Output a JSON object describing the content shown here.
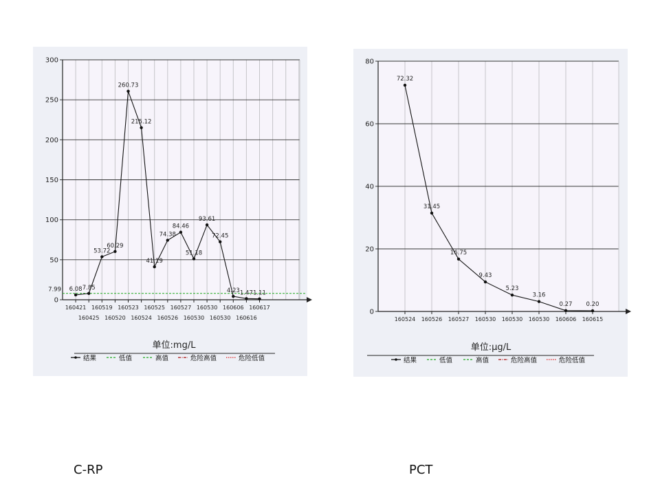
{
  "charts_meta": {
    "captions": [
      "C-RP",
      "PCT"
    ]
  },
  "legend_items": [
    {
      "label": "结果",
      "color": "#000000",
      "dash": "solid"
    },
    {
      "label": "低值",
      "color": "#22aa22",
      "dash": "dashed"
    },
    {
      "label": "高值",
      "color": "#22aa22",
      "dash": "dashed"
    },
    {
      "label": "危险高值",
      "color": "#aa1111",
      "dash": "dashdot"
    },
    {
      "label": "危险低值",
      "color": "#dd2222",
      "dash": "dotted"
    }
  ],
  "chart_data": [
    {
      "type": "line",
      "caption": "C-RP",
      "unit_label": "单位:mg/L",
      "ylim": [
        0,
        300
      ],
      "yticks": [
        0,
        50,
        100,
        150,
        200,
        250,
        300
      ],
      "categories": [
        "160421",
        "160425",
        "160519",
        "160520",
        "160523",
        "160524",
        "160525",
        "160526",
        "160527",
        "160530",
        "160530",
        "160530",
        "160606",
        "160616",
        "160617"
      ],
      "series": [
        {
          "name": "结果",
          "values": [
            6.08,
            7.85,
            53.72,
            60.29,
            260.73,
            215.12,
            41.19,
            74.38,
            84.46,
            51.18,
            93.61,
            72.45,
            4.23,
            1.47,
            1.11
          ],
          "labels": [
            "6.08",
            "7.85",
            "53.72",
            "60.29",
            "260.73",
            "215.12",
            "41.19",
            "74.38",
            "84.46",
            "51.18",
            "93.61",
            "72.45",
            "4.23",
            "1.47",
            "1.11"
          ]
        }
      ],
      "reference_line": {
        "name": "低值",
        "value": 7.99,
        "label": "7.99"
      },
      "grid": true,
      "legend": "bottom"
    },
    {
      "type": "line",
      "caption": "PCT",
      "unit_label": "单位:μg/L",
      "ylim": [
        0,
        80
      ],
      "yticks": [
        0,
        20,
        40,
        60,
        80
      ],
      "categories": [
        "160524",
        "160526",
        "160527",
        "160530",
        "160530",
        "160530",
        "160606",
        "160615"
      ],
      "series": [
        {
          "name": "结果",
          "values": [
            72.32,
            31.45,
            16.75,
            9.43,
            5.23,
            3.16,
            0.27,
            0.2
          ],
          "labels": [
            "72.32",
            "31.45",
            "16.75",
            "9.43",
            "5.23",
            "3.16",
            "0.27",
            "0.20"
          ]
        }
      ],
      "grid": true,
      "legend": "bottom"
    }
  ]
}
